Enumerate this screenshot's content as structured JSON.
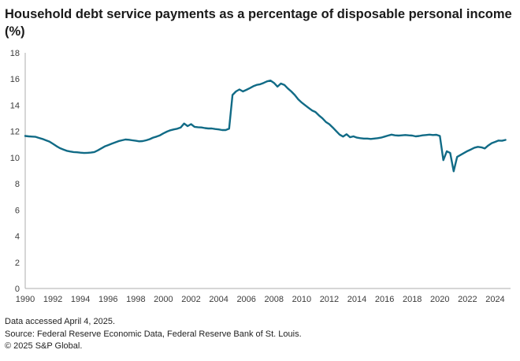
{
  "title": "Household debt service payments as a percentage of disposable personal income (%)",
  "footer": {
    "accessed": "Data accessed April 4, 2025.",
    "source": "Source: Federal Reserve Economic Data, Federal Reserve Bank of St. Louis.",
    "copyright": "© 2025 S&P Global."
  },
  "colors": {
    "line": "#116b86",
    "axis": "#aeaeae",
    "tick_text": "#3c3c3c",
    "title_text": "#1a1a1a",
    "footer_text": "#1f1f1f"
  },
  "chart_data": {
    "type": "line",
    "title": "Household debt service payments as a percentage of disposable personal income (%)",
    "xlabel": "",
    "ylabel": "",
    "grid": false,
    "legend": "none",
    "xlim": [
      1990,
      2025
    ],
    "ylim": [
      0,
      18
    ],
    "xticks": [
      1990,
      1992,
      1994,
      1996,
      1998,
      2000,
      2002,
      2004,
      2006,
      2008,
      2010,
      2012,
      2014,
      2016,
      2018,
      2020,
      2022,
      2024
    ],
    "yticks": [
      0,
      2,
      4,
      6,
      8,
      10,
      12,
      14,
      16,
      18
    ],
    "x_unit": "year (quarterly observations)",
    "series": [
      {
        "name": "Household debt service payments (% of disposable personal income)",
        "x_start": 1990,
        "x_step": 0.25,
        "values": [
          11.65,
          11.62,
          11.6,
          11.58,
          11.5,
          11.42,
          11.32,
          11.22,
          11.05,
          10.88,
          10.72,
          10.62,
          10.52,
          10.46,
          10.42,
          10.4,
          10.37,
          10.35,
          10.36,
          10.38,
          10.42,
          10.55,
          10.7,
          10.85,
          10.95,
          11.05,
          11.15,
          11.25,
          11.32,
          11.38,
          11.36,
          11.32,
          11.28,
          11.24,
          11.26,
          11.32,
          11.4,
          11.52,
          11.6,
          11.7,
          11.85,
          11.98,
          12.08,
          12.15,
          12.2,
          12.3,
          12.6,
          12.4,
          12.55,
          12.35,
          12.32,
          12.3,
          12.25,
          12.22,
          12.22,
          12.18,
          12.15,
          12.1,
          12.1,
          12.2,
          14.78,
          15.05,
          15.2,
          15.05,
          15.17,
          15.3,
          15.45,
          15.55,
          15.6,
          15.7,
          15.82,
          15.88,
          15.7,
          15.42,
          15.65,
          15.55,
          15.28,
          15.05,
          14.78,
          14.45,
          14.2,
          14.0,
          13.8,
          13.6,
          13.48,
          13.22,
          13.0,
          12.72,
          12.55,
          12.3,
          12.02,
          11.75,
          11.6,
          11.78,
          11.55,
          11.62,
          11.52,
          11.48,
          11.45,
          11.45,
          11.42,
          11.45,
          11.48,
          11.52,
          11.6,
          11.68,
          11.75,
          11.7,
          11.68,
          11.7,
          11.72,
          11.7,
          11.68,
          11.62,
          11.65,
          11.7,
          11.72,
          11.75,
          11.72,
          11.74,
          11.65,
          9.8,
          10.48,
          10.35,
          8.95,
          10.05,
          10.2,
          10.35,
          10.5,
          10.62,
          10.75,
          10.82,
          10.78,
          10.7,
          10.92,
          11.1,
          11.2,
          11.3,
          11.28,
          11.35
        ]
      }
    ]
  }
}
